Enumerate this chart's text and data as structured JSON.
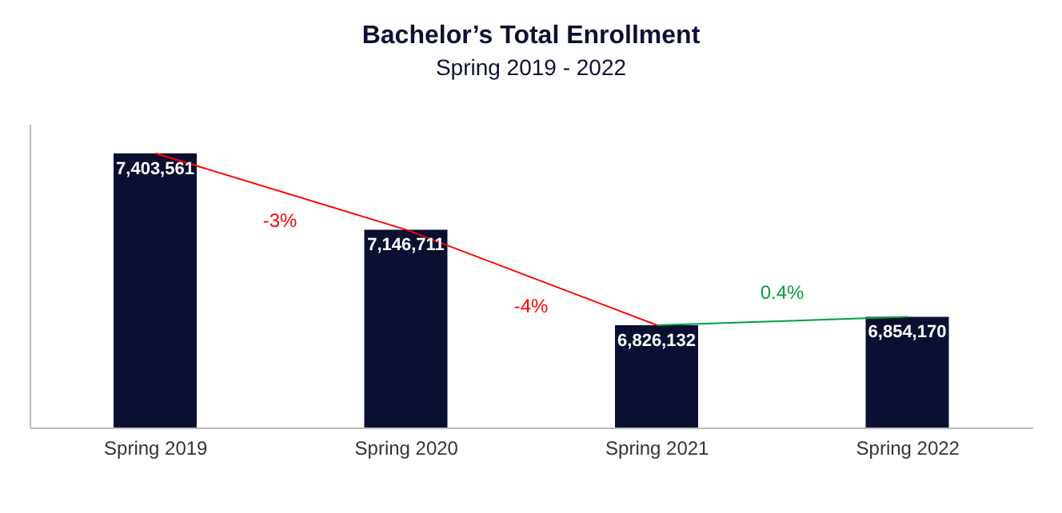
{
  "chart_data": {
    "type": "bar",
    "title": "Bachelor’s Total Enrollment",
    "subtitle": "Spring 2019 - 2022",
    "categories": [
      "Spring 2019",
      "Spring 2020",
      "Spring 2021",
      "Spring 2022"
    ],
    "ylim": [
      6480000,
      7500000
    ],
    "tick_labels": "x",
    "grid": false,
    "legend": false,
    "series": [
      {
        "color": "#0b1033",
        "values": [
          7403561,
          7146711,
          6826132,
          6854170
        ],
        "value_labels": [
          "7,403,561",
          "7,146,711",
          "6,826,132",
          "6,854,170"
        ]
      },
      {
        "type": "line",
        "color": "#ff0000",
        "values": [
          7403561,
          7146711,
          6826132,
          null
        ]
      },
      {
        "type": "line",
        "color": "#00a03c",
        "values": [
          null,
          null,
          6826132,
          6854170
        ]
      }
    ],
    "annotations": [
      "-3%",
      "-4%",
      "0.4%"
    ]
  }
}
